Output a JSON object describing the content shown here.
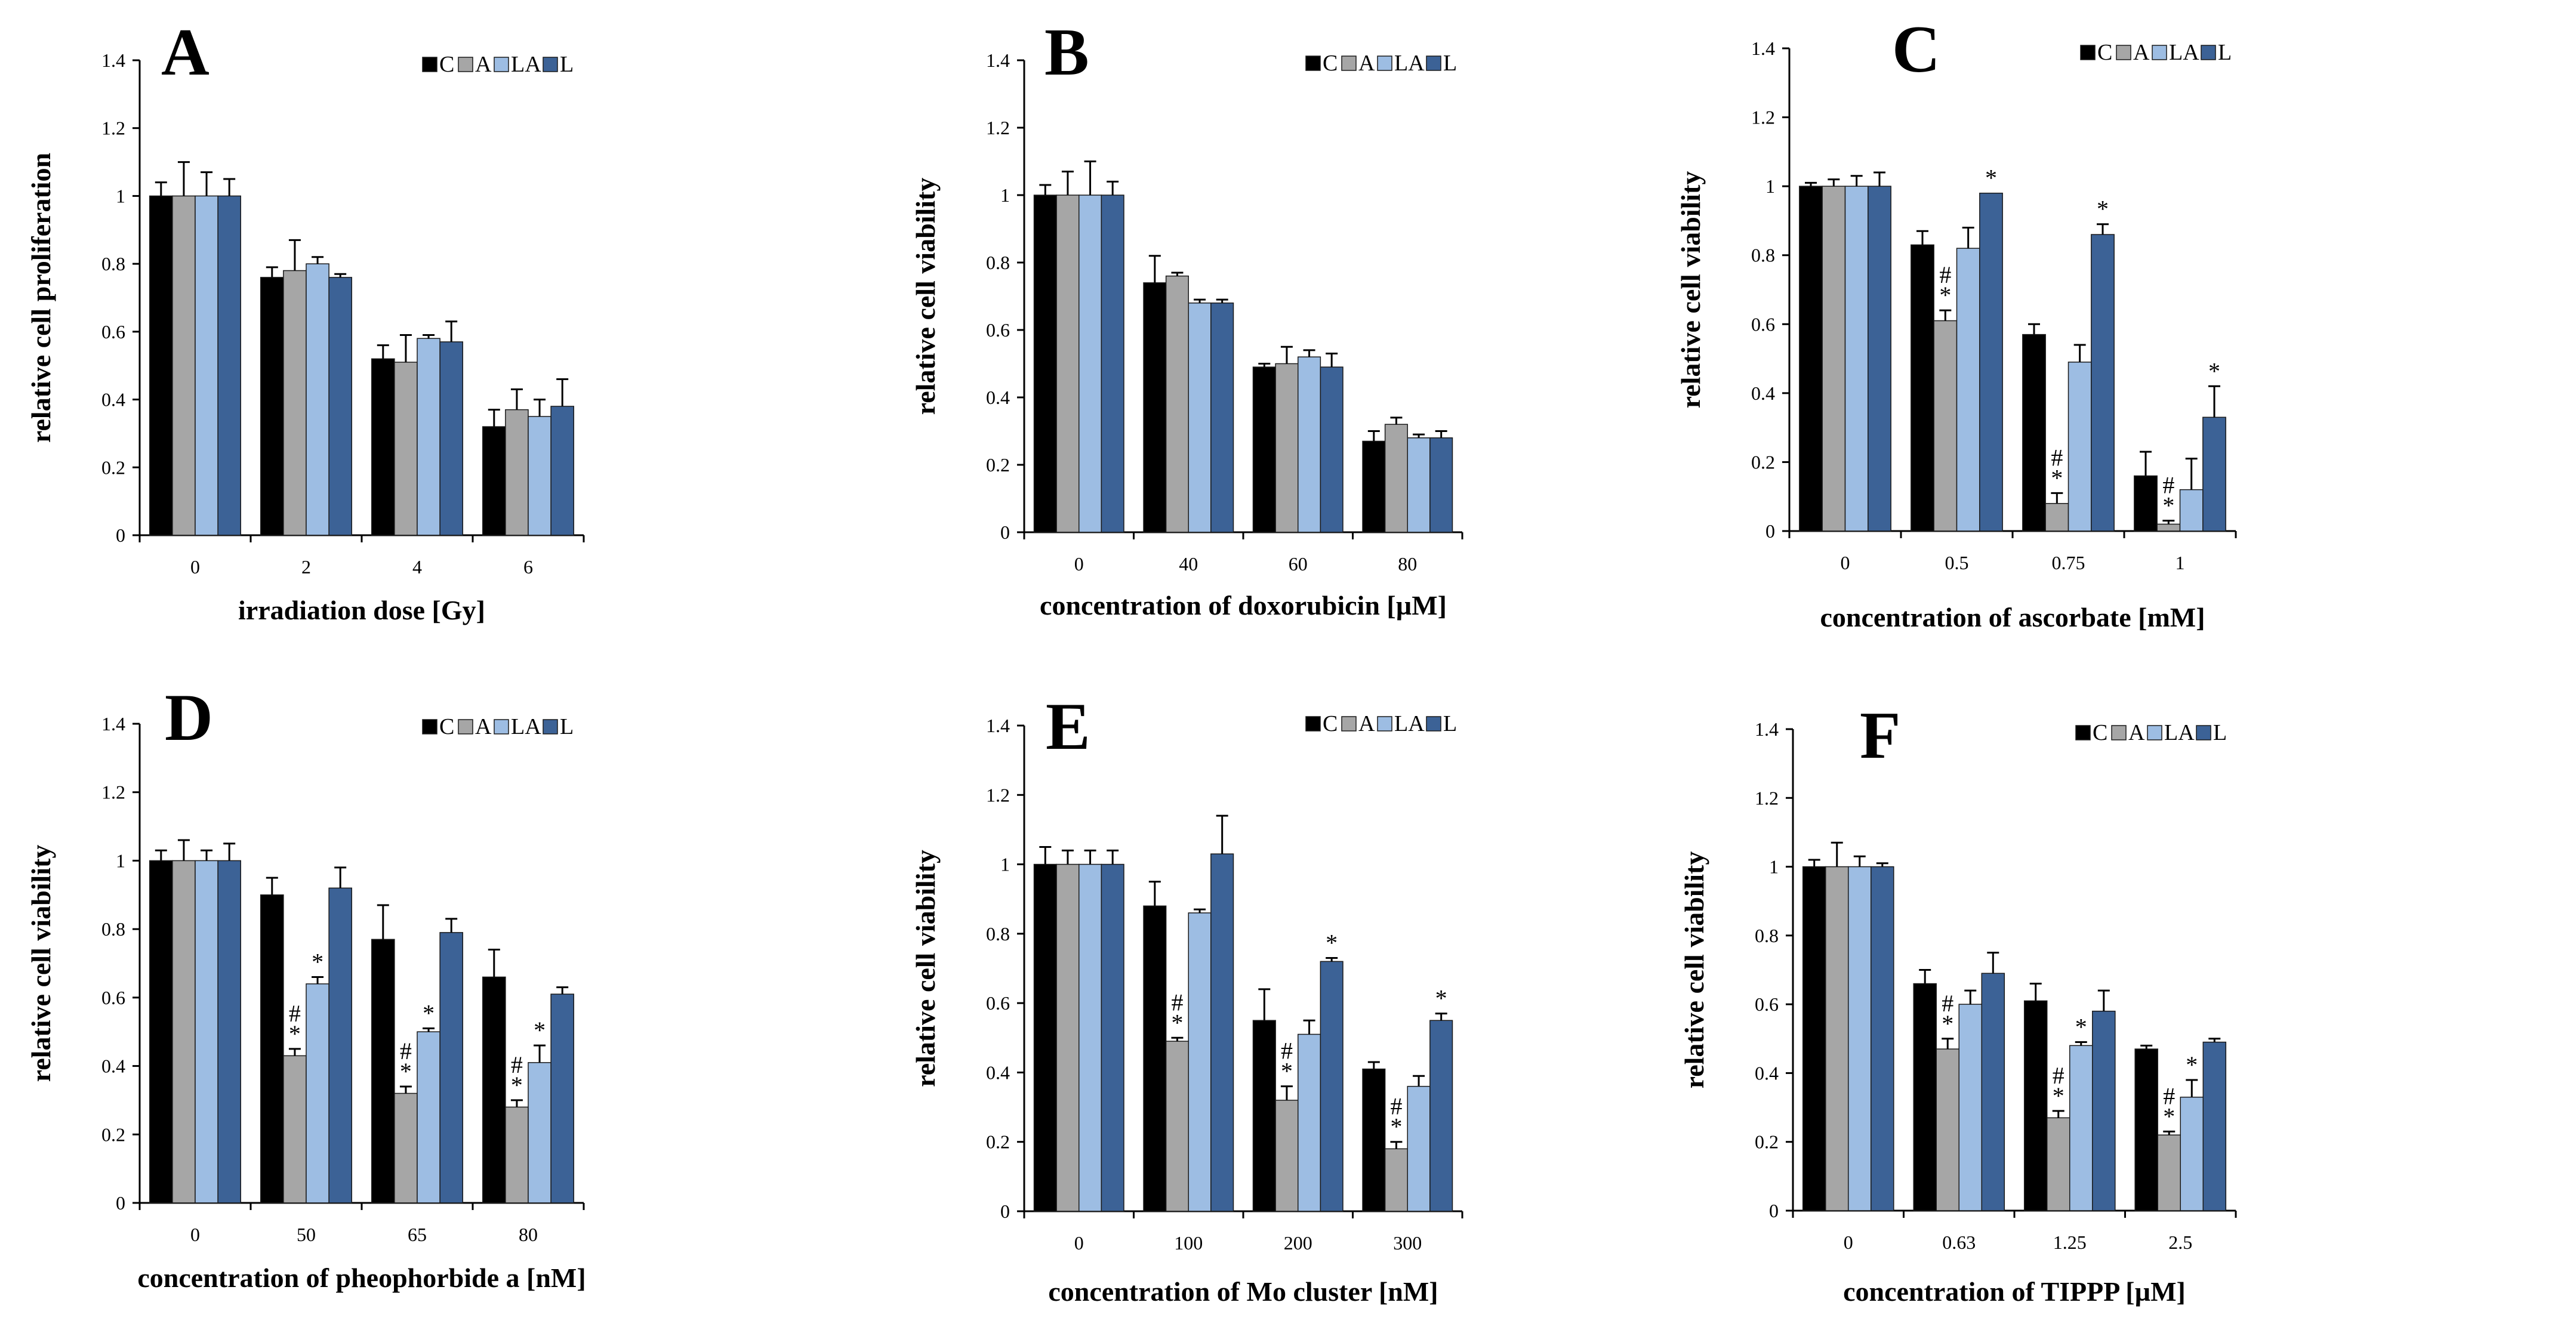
{
  "figure": {
    "legend": [
      {
        "key": "C",
        "color": "#000000"
      },
      {
        "key": "A",
        "color": "#a6a6a6"
      },
      {
        "key": "LA",
        "color": "#9dbde3"
      },
      {
        "key": "L",
        "color": "#3c6296"
      }
    ],
    "yticks": [
      "0",
      "0.2",
      "0.4",
      "0.6",
      "0.8",
      "1",
      "1.2",
      "1.4"
    ]
  },
  "chart_data": [
    {
      "panel": "A",
      "type": "bar",
      "title": "",
      "xlabel": "irradiation dose [Gy]",
      "ylabel": "relative cell proliferation",
      "ylim": [
        0,
        1.4
      ],
      "categories": [
        "0",
        "2",
        "4",
        "6"
      ],
      "series": [
        {
          "name": "C",
          "values": [
            1.0,
            0.76,
            0.52,
            0.32
          ],
          "errors": [
            0.04,
            0.03,
            0.04,
            0.05
          ],
          "annotations": [
            "",
            "",
            "",
            ""
          ]
        },
        {
          "name": "A",
          "values": [
            1.0,
            0.78,
            0.51,
            0.37
          ],
          "errors": [
            0.1,
            0.09,
            0.08,
            0.06
          ],
          "annotations": [
            "",
            "",
            "",
            ""
          ]
        },
        {
          "name": "LA",
          "values": [
            1.0,
            0.8,
            0.58,
            0.35
          ],
          "errors": [
            0.07,
            0.02,
            0.01,
            0.05
          ],
          "annotations": [
            "",
            "",
            "",
            ""
          ]
        },
        {
          "name": "L",
          "values": [
            1.0,
            0.76,
            0.57,
            0.38
          ],
          "errors": [
            0.05,
            0.01,
            0.06,
            0.08
          ],
          "annotations": [
            "",
            "",
            "",
            ""
          ]
        }
      ]
    },
    {
      "panel": "B",
      "type": "bar",
      "title": "",
      "xlabel": "concentration of doxorubicin [µM]",
      "ylabel": "relative cell viability",
      "ylim": [
        0,
        1.4
      ],
      "categories": [
        "0",
        "40",
        "60",
        "80"
      ],
      "series": [
        {
          "name": "C",
          "values": [
            1.0,
            0.74,
            0.49,
            0.27
          ],
          "errors": [
            0.03,
            0.08,
            0.01,
            0.03
          ],
          "annotations": [
            "",
            "",
            "",
            ""
          ]
        },
        {
          "name": "A",
          "values": [
            1.0,
            0.76,
            0.5,
            0.32
          ],
          "errors": [
            0.07,
            0.01,
            0.05,
            0.02
          ],
          "annotations": [
            "",
            "",
            "",
            ""
          ]
        },
        {
          "name": "LA",
          "values": [
            1.0,
            0.68,
            0.52,
            0.28
          ],
          "errors": [
            0.1,
            0.01,
            0.02,
            0.01
          ],
          "annotations": [
            "",
            "",
            "",
            ""
          ]
        },
        {
          "name": "L",
          "values": [
            1.0,
            0.68,
            0.49,
            0.28
          ],
          "errors": [
            0.04,
            0.01,
            0.04,
            0.02
          ],
          "annotations": [
            "",
            "",
            "",
            ""
          ]
        }
      ]
    },
    {
      "panel": "C",
      "type": "bar",
      "title": "",
      "xlabel": "concentration of ascorbate [mM]",
      "ylabel": "relative cell viability",
      "ylim": [
        0,
        1.4
      ],
      "categories": [
        "0",
        "0.5",
        "0.75",
        "1"
      ],
      "series": [
        {
          "name": "C",
          "values": [
            1.0,
            0.83,
            0.57,
            0.16
          ],
          "errors": [
            0.01,
            0.04,
            0.03,
            0.07
          ],
          "annotations": [
            "",
            "",
            "",
            ""
          ]
        },
        {
          "name": "A",
          "values": [
            1.0,
            0.61,
            0.08,
            0.02
          ],
          "errors": [
            0.02,
            0.03,
            0.03,
            0.01
          ],
          "annotations": [
            "",
            "#\n*",
            "#\n*",
            "#\n*"
          ]
        },
        {
          "name": "LA",
          "values": [
            1.0,
            0.82,
            0.49,
            0.12
          ],
          "errors": [
            0.03,
            0.06,
            0.05,
            0.09
          ],
          "annotations": [
            "",
            "",
            "",
            ""
          ]
        },
        {
          "name": "L",
          "values": [
            1.0,
            0.98,
            0.86,
            0.33
          ],
          "errors": [
            0.04,
            0.0,
            0.03,
            0.09
          ],
          "annotations": [
            "",
            "*",
            "*",
            "*"
          ]
        }
      ]
    },
    {
      "panel": "D",
      "type": "bar",
      "title": "",
      "xlabel": "concentration of pheophorbide a [nM]",
      "ylabel": "relative cell viability",
      "ylim": [
        0,
        1.4
      ],
      "categories": [
        "0",
        "50",
        "65",
        "80"
      ],
      "series": [
        {
          "name": "C",
          "values": [
            1.0,
            0.9,
            0.77,
            0.66
          ],
          "errors": [
            0.03,
            0.05,
            0.1,
            0.08
          ],
          "annotations": [
            "",
            "",
            "",
            ""
          ]
        },
        {
          "name": "A",
          "values": [
            1.0,
            0.43,
            0.32,
            0.28
          ],
          "errors": [
            0.06,
            0.02,
            0.02,
            0.02
          ],
          "annotations": [
            "",
            "#\n*",
            "#\n*",
            "#\n*"
          ]
        },
        {
          "name": "LA",
          "values": [
            1.0,
            0.64,
            0.5,
            0.41
          ],
          "errors": [
            0.03,
            0.02,
            0.01,
            0.05
          ],
          "annotations": [
            "",
            "*",
            "*",
            "*"
          ]
        },
        {
          "name": "L",
          "values": [
            1.0,
            0.92,
            0.79,
            0.61
          ],
          "errors": [
            0.05,
            0.06,
            0.04,
            0.02
          ],
          "annotations": [
            "",
            "",
            "",
            ""
          ]
        }
      ]
    },
    {
      "panel": "E",
      "type": "bar",
      "title": "",
      "xlabel": "concentration of Mo cluster [nM]",
      "ylabel": "relative cell viability",
      "ylim": [
        0,
        1.4
      ],
      "categories": [
        "0",
        "100",
        "200",
        "300"
      ],
      "series": [
        {
          "name": "C",
          "values": [
            1.0,
            0.88,
            0.55,
            0.41
          ],
          "errors": [
            0.05,
            0.07,
            0.09,
            0.02
          ],
          "annotations": [
            "",
            "",
            "",
            ""
          ]
        },
        {
          "name": "A",
          "values": [
            1.0,
            0.49,
            0.32,
            0.18
          ],
          "errors": [
            0.04,
            0.01,
            0.04,
            0.02
          ],
          "annotations": [
            "",
            "#\n*",
            "#\n*",
            "#\n*"
          ]
        },
        {
          "name": "LA",
          "values": [
            1.0,
            0.86,
            0.51,
            0.36
          ],
          "errors": [
            0.04,
            0.01,
            0.04,
            0.03
          ],
          "annotations": [
            "",
            "",
            "",
            ""
          ]
        },
        {
          "name": "L",
          "values": [
            1.0,
            1.03,
            0.72,
            0.55
          ],
          "errors": [
            0.04,
            0.11,
            0.01,
            0.02
          ],
          "annotations": [
            "",
            "",
            "*",
            "*"
          ]
        }
      ]
    },
    {
      "panel": "F",
      "type": "bar",
      "title": "",
      "xlabel": "concentration of TIPPP [µM]",
      "ylabel": "relative cell viability",
      "ylim": [
        0,
        1.4
      ],
      "categories": [
        "0",
        "0.63",
        "1.25",
        "2.5"
      ],
      "series": [
        {
          "name": "C",
          "values": [
            1.0,
            0.66,
            0.61,
            0.47
          ],
          "errors": [
            0.02,
            0.04,
            0.05,
            0.01
          ],
          "annotations": [
            "",
            "",
            "",
            ""
          ]
        },
        {
          "name": "A",
          "values": [
            1.0,
            0.47,
            0.27,
            0.22
          ],
          "errors": [
            0.07,
            0.03,
            0.02,
            0.01
          ],
          "annotations": [
            "",
            "#\n*",
            "#\n*",
            "#\n*"
          ]
        },
        {
          "name": "LA",
          "values": [
            1.0,
            0.6,
            0.48,
            0.33
          ],
          "errors": [
            0.03,
            0.04,
            0.01,
            0.05
          ],
          "annotations": [
            "",
            "",
            "*",
            "*"
          ]
        },
        {
          "name": "L",
          "values": [
            1.0,
            0.69,
            0.58,
            0.49
          ],
          "errors": [
            0.01,
            0.06,
            0.06,
            0.01
          ],
          "annotations": [
            "",
            "",
            "",
            ""
          ]
        }
      ]
    }
  ]
}
